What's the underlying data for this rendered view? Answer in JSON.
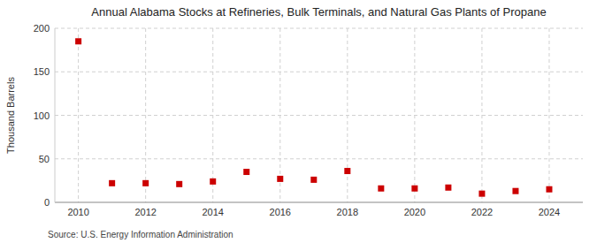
{
  "chart_data": {
    "type": "scatter",
    "title": "Annual Alabama Stocks at Refineries, Bulk Terminals, and Natural Gas Plants of Propane",
    "ylabel": "Thousand Barrels",
    "source": "Source: U.S. Energy Information Administration",
    "x": [
      2010,
      2011,
      2012,
      2013,
      2014,
      2015,
      2016,
      2017,
      2018,
      2019,
      2020,
      2021,
      2022,
      2023,
      2024
    ],
    "values": [
      185,
      22,
      22,
      21,
      24,
      35,
      27,
      26,
      36,
      16,
      16,
      17,
      10,
      13,
      15
    ],
    "color": "#cc0000",
    "marker": "square",
    "xlim": [
      2009.3,
      2025.0
    ],
    "xticks": [
      2010,
      2012,
      2014,
      2016,
      2018,
      2020,
      2022,
      2024
    ],
    "ylim": [
      0,
      200
    ],
    "yticks": [
      0,
      50,
      100,
      150,
      200
    ],
    "grid": true
  }
}
